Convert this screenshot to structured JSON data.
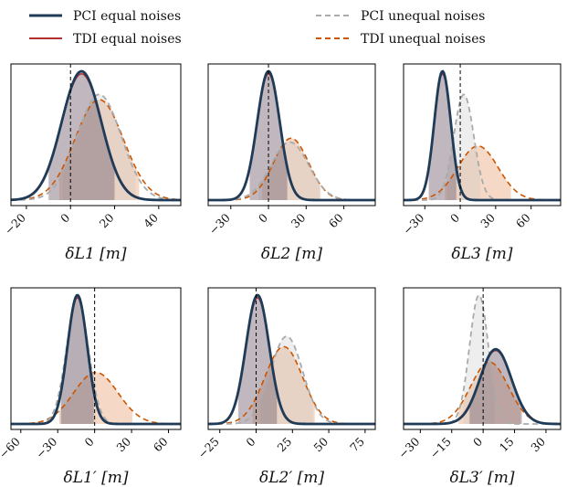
{
  "legend": {
    "entries": [
      {
        "label": "PCI equal noises",
        "color": "#1f3b57",
        "style": "solid"
      },
      {
        "label": "TDI equal noises",
        "color": "#b03030",
        "style": "solid"
      },
      {
        "label": "PCI unequal noises",
        "color": "#aaaaaa",
        "style": "dashed"
      },
      {
        "label": "TDI unequal noises",
        "color": "#cc5500",
        "style": "dashed"
      }
    ]
  },
  "chart_data": [
    {
      "type": "area",
      "xlabel": "δL1 [m]",
      "xlim": [
        -27,
        50
      ],
      "ticks": [
        -20,
        0,
        20,
        40
      ],
      "series": [
        {
          "name": "PCI equal noises",
          "mean": 5,
          "sd": 9,
          "amp": 1.0
        },
        {
          "name": "TDI equal noises",
          "mean": 5,
          "sd": 9.2,
          "amp": 0.98
        },
        {
          "name": "PCI unequal noises",
          "mean": 13,
          "sd": 10,
          "amp": 0.82
        },
        {
          "name": "TDI unequal noises",
          "mean": 13,
          "sd": 11,
          "amp": 0.78
        }
      ]
    },
    {
      "type": "area",
      "xlabel": "δL2 [m]",
      "xlim": [
        -48,
        85
      ],
      "ticks": [
        -30,
        0,
        30,
        60
      ],
      "series": [
        {
          "name": "PCI equal noises",
          "mean": 0,
          "sd": 9,
          "amp": 1.0
        },
        {
          "name": "TDI equal noises",
          "mean": 0,
          "sd": 9.2,
          "amp": 0.98
        },
        {
          "name": "PCI unequal noises",
          "mean": 17,
          "sd": 15,
          "amp": 0.45
        },
        {
          "name": "TDI unequal noises",
          "mean": 18,
          "sd": 14,
          "amp": 0.48
        }
      ]
    },
    {
      "type": "area",
      "xlabel": "δL3 [m]",
      "xlim": [
        -48,
        85
      ],
      "ticks": [
        -30,
        0,
        30,
        60
      ],
      "series": [
        {
          "name": "PCI equal noises",
          "mean": -15,
          "sd": 7,
          "amp": 1.0
        },
        {
          "name": "TDI equal noises",
          "mean": -15,
          "sd": 7.2,
          "amp": 0.98
        },
        {
          "name": "PCI unequal noises",
          "mean": 3,
          "sd": 8.5,
          "amp": 0.82
        },
        {
          "name": "TDI unequal noises",
          "mean": 15,
          "sd": 17,
          "amp": 0.42
        }
      ]
    },
    {
      "type": "area",
      "xlabel": "δL1′ [m]",
      "xlim": [
        -68,
        70
      ],
      "ticks": [
        -60,
        -30,
        0,
        30,
        60
      ],
      "series": [
        {
          "name": "PCI equal noises",
          "mean": -14,
          "sd": 8,
          "amp": 1.0
        },
        {
          "name": "TDI equal noises",
          "mean": -14,
          "sd": 8.2,
          "amp": 0.98
        },
        {
          "name": "PCI unequal noises",
          "mean": -14,
          "sd": 9,
          "amp": 0.96
        },
        {
          "name": "TDI unequal noises",
          "mean": 1,
          "sd": 18,
          "amp": 0.4
        }
      ]
    },
    {
      "type": "area",
      "xlabel": "δL2′ [m]",
      "xlim": [
        -33,
        82
      ],
      "ticks": [
        -25,
        0,
        25,
        50,
        75
      ],
      "series": [
        {
          "name": "PCI equal noises",
          "mean": 1,
          "sd": 8,
          "amp": 1.0
        },
        {
          "name": "TDI equal noises",
          "mean": 1,
          "sd": 8.2,
          "amp": 0.98
        },
        {
          "name": "PCI unequal noises",
          "mean": 21,
          "sd": 11,
          "amp": 0.68
        },
        {
          "name": "TDI unequal noises",
          "mean": 19,
          "sd": 13,
          "amp": 0.6
        }
      ]
    },
    {
      "type": "area",
      "xlabel": "δL3′ [m]",
      "xlim": [
        -38,
        37
      ],
      "ticks": [
        -30,
        -15,
        0,
        15,
        30
      ],
      "series": [
        {
          "name": "PCI equal noises",
          "mean": 6,
          "sd": 7.5,
          "amp": 0.58
        },
        {
          "name": "TDI equal noises",
          "mean": 6,
          "sd": 7.7,
          "amp": 0.57
        },
        {
          "name": "PCI unequal noises",
          "mean": -2,
          "sd": 4.5,
          "amp": 1.0
        },
        {
          "name": "TDI unequal noises",
          "mean": 3,
          "sd": 9,
          "amp": 0.48
        }
      ]
    }
  ]
}
